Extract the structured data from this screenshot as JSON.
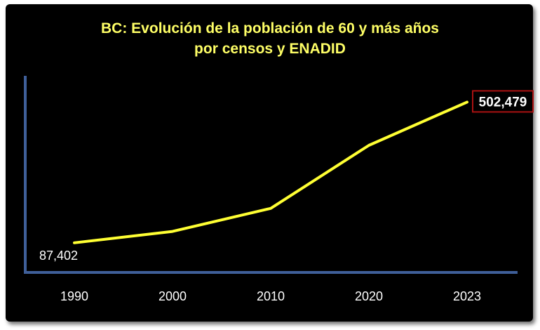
{
  "chart_data": {
    "type": "line",
    "title_lines": [
      "BC: Evolución de la población de 60 y más años",
      "por censos y ENADID"
    ],
    "categories": [
      "1990",
      "2000",
      "2010",
      "2020",
      "2023"
    ],
    "series": [
      {
        "values": [
          87402,
          121000,
          189000,
          375000,
          502479
        ]
      }
    ],
    "data_labels": {
      "first": "87,402",
      "last": "502,479"
    },
    "ylim": [
      0,
      580000
    ],
    "colors": {
      "background": "#000000",
      "line": "#ffff33",
      "axis": "#3f5f99",
      "title": "#ffff66",
      "text": "#ffffff",
      "callout_border": "#aa1111"
    },
    "grid": false,
    "legend": "none"
  }
}
